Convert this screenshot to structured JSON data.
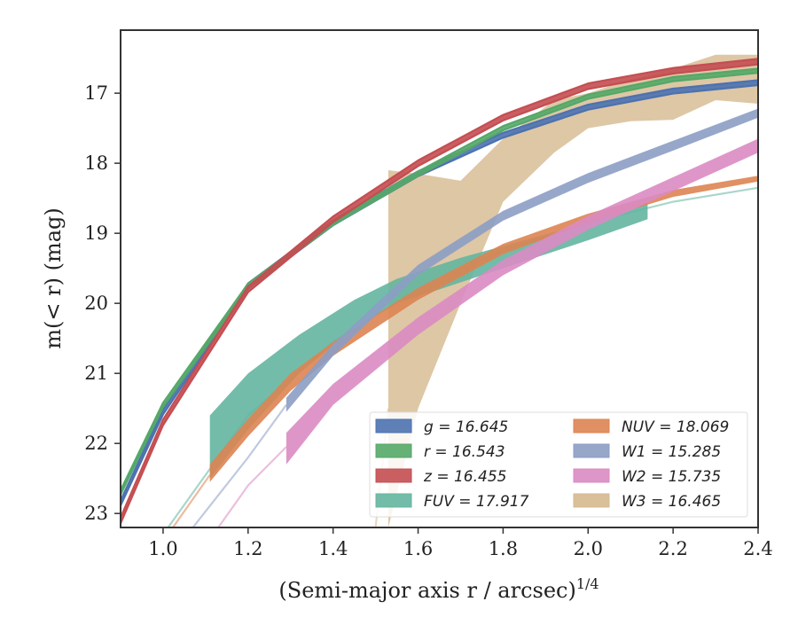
{
  "chart_data": {
    "type": "area",
    "xlabel": "(Semi-major axis r / arcsec)",
    "xlabel_exponent": "1/4",
    "ylabel": "m(< r) (mag)",
    "xlim": [
      0.9,
      2.4
    ],
    "ylim": [
      23.2,
      16.1
    ],
    "y_inverted": true,
    "grid": false,
    "legend_position": "lower-right",
    "x_ticks": [
      "1.0",
      "1.2",
      "1.4",
      "1.6",
      "1.8",
      "2.0",
      "2.2",
      "2.4"
    ],
    "y_ticks": [
      "17",
      "18",
      "19",
      "20",
      "21",
      "22",
      "23"
    ],
    "series": [
      {
        "name": "g",
        "legend": "g = 16.645",
        "color": "#4c72b0",
        "x": [
          0.9,
          1.0,
          1.2,
          1.4,
          1.6,
          1.8,
          2.0,
          2.2,
          2.4
        ],
        "y": [
          22.85,
          21.55,
          19.75,
          18.85,
          18.15,
          17.6,
          17.2,
          16.97,
          16.85
        ],
        "band": 0.07
      },
      {
        "name": "r",
        "legend": "r = 16.543",
        "color": "#55a868",
        "x": [
          0.9,
          1.0,
          1.2,
          1.4,
          1.6,
          1.8,
          2.0,
          2.2,
          2.4
        ],
        "y": [
          22.7,
          21.45,
          19.75,
          18.85,
          18.15,
          17.5,
          17.05,
          16.8,
          16.68
        ],
        "band": 0.06
      },
      {
        "name": "z",
        "legend": "z = 16.455",
        "color": "#c44e52",
        "x": [
          0.9,
          1.0,
          1.2,
          1.4,
          1.6,
          1.8,
          2.0,
          2.2,
          2.4
        ],
        "y": [
          23.1,
          21.7,
          19.8,
          18.8,
          18.0,
          17.35,
          16.9,
          16.68,
          16.55
        ],
        "band": 0.08
      },
      {
        "name": "FUV",
        "legend": "FUV = 17.917",
        "color": "#64b5a0",
        "x": [
          1.11,
          1.2,
          1.32,
          1.45,
          1.55,
          1.7,
          1.85,
          2.0,
          2.14
        ],
        "y_low": [
          22.5,
          21.8,
          21.0,
          20.35,
          20.0,
          19.7,
          19.4,
          19.1,
          18.8
        ],
        "y_high": [
          21.6,
          21.0,
          20.45,
          19.95,
          19.65,
          19.35,
          19.1,
          18.85,
          18.55
        ],
        "extension": {
          "x": [
            0.9,
            1.0,
            1.2,
            1.4,
            1.6,
            1.8,
            2.0,
            2.2,
            2.4
          ],
          "y": [
            25.0,
            23.3,
            21.6,
            20.55,
            19.8,
            19.25,
            18.85,
            18.55,
            18.35
          ]
        }
      },
      {
        "name": "NUV",
        "legend": "NUV = 18.069",
        "color": "#dd8452",
        "x": [
          1.11,
          1.2,
          1.3,
          1.4,
          1.6,
          1.8,
          2.0,
          2.2,
          2.4
        ],
        "y_low": [
          22.55,
          21.9,
          21.25,
          20.75,
          19.95,
          19.3,
          18.85,
          18.48,
          18.26
        ],
        "y_high": [
          22.3,
          21.65,
          21.0,
          20.55,
          19.78,
          19.15,
          18.72,
          18.38,
          18.18
        ],
        "extension": {
          "x": [
            0.9,
            1.0,
            1.11
          ],
          "y": [
            24.5,
            23.4,
            22.45
          ]
        }
      },
      {
        "name": "W1",
        "legend": "W1 = 15.285",
        "color": "#8c9dc4",
        "x": [
          1.29,
          1.4,
          1.6,
          1.8,
          2.0,
          2.2,
          2.4
        ],
        "y_low": [
          21.55,
          20.75,
          19.6,
          18.82,
          18.28,
          17.82,
          17.35
        ],
        "y_high": [
          21.35,
          20.58,
          19.45,
          18.68,
          18.14,
          17.68,
          17.22
        ],
        "extension": {
          "x": [
            1.07,
            1.2,
            1.29
          ],
          "y": [
            23.2,
            22.2,
            21.45
          ]
        }
      },
      {
        "name": "W2",
        "legend": "W2 = 15.735",
        "color": "#da8bc3",
        "x": [
          1.29,
          1.4,
          1.6,
          1.8,
          2.0,
          2.2,
          2.4
        ],
        "y_low": [
          22.3,
          21.45,
          20.45,
          19.6,
          18.95,
          18.4,
          17.85
        ],
        "y_high": [
          21.85,
          21.15,
          20.2,
          19.38,
          18.75,
          18.2,
          17.65
        ],
        "extension": {
          "x": [
            1.13,
            1.2,
            1.29
          ],
          "y": [
            23.2,
            22.6,
            22.05
          ]
        }
      },
      {
        "name": "W3",
        "legend": "W3 = 16.465",
        "color": "#d6b98e",
        "x": [
          1.53,
          1.6,
          1.7,
          1.8,
          1.92,
          2.0,
          2.1,
          2.2,
          2.3,
          2.4
        ],
        "y_low": [
          23.2,
          21.5,
          20.0,
          18.55,
          17.85,
          17.5,
          17.4,
          17.38,
          17.1,
          17.15
        ],
        "y_high": [
          18.1,
          18.15,
          18.25,
          17.65,
          17.1,
          17.0,
          16.8,
          16.65,
          16.45,
          16.45
        ],
        "extension": {
          "x": [
            1.5,
            1.53
          ],
          "y": [
            23.2,
            21.5
          ]
        }
      }
    ]
  }
}
